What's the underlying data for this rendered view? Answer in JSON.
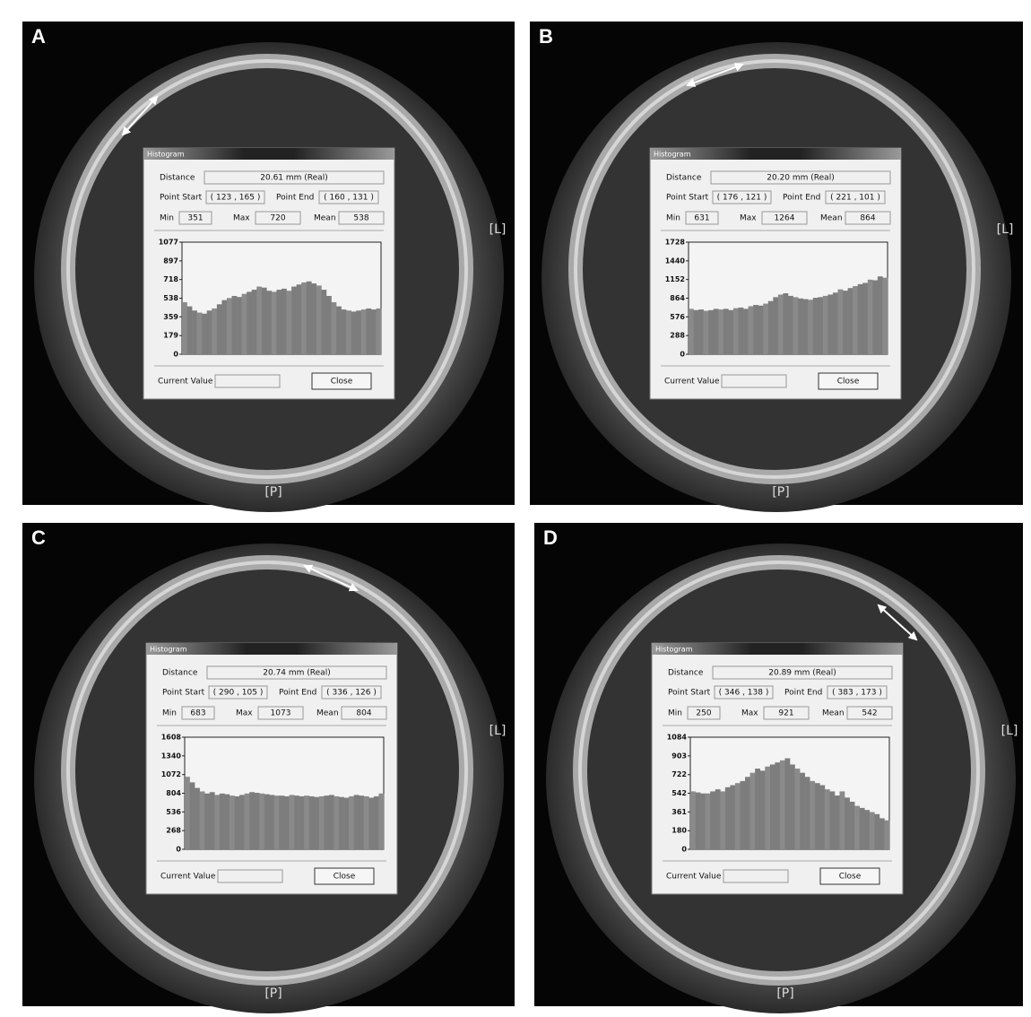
{
  "dialog_labels": {
    "title": "Histogram",
    "distance": "Distance",
    "point_start": "Point Start",
    "point_end": "Point End",
    "min": "Min",
    "max": "Max",
    "mean": "Mean",
    "current_value": "Current Value",
    "close": "Close"
  },
  "orientation": {
    "left": "[L]",
    "posterior": "[P]"
  },
  "panels": [
    {
      "letter": "A",
      "distance": "20.61 mm (Real)",
      "point_start": "( 123 , 165 )",
      "point_end": "( 160 , 131 )",
      "min": 351,
      "max": 720,
      "mean": 538,
      "histogram": {
        "type": "bar",
        "color": "#7d7d7d",
        "ylim": [
          0,
          1077
        ],
        "yticks": [
          0,
          179,
          359,
          538,
          718,
          897,
          1077
        ],
        "values": [
          500,
          460,
          420,
          400,
          390,
          420,
          440,
          480,
          520,
          540,
          560,
          550,
          580,
          600,
          620,
          650,
          640,
          610,
          600,
          620,
          630,
          610,
          650,
          670,
          690,
          700,
          680,
          660,
          620,
          560,
          500,
          460,
          430,
          420,
          410,
          420,
          430,
          440,
          430,
          440
        ]
      }
    },
    {
      "letter": "B",
      "distance": "20.20 mm (Real)",
      "point_start": "( 176 , 121 )",
      "point_end": "( 221 , 101 )",
      "min": 631,
      "max": 1264,
      "mean": 864,
      "histogram": {
        "type": "bar",
        "color": "#7d7d7d",
        "ylim": [
          0,
          1728
        ],
        "yticks": [
          0,
          288,
          576,
          864,
          1152,
          1440,
          1728
        ],
        "values": [
          700,
          680,
          690,
          670,
          680,
          700,
          690,
          700,
          680,
          710,
          720,
          700,
          740,
          760,
          750,
          780,
          820,
          880,
          920,
          940,
          900,
          880,
          860,
          850,
          840,
          870,
          880,
          900,
          920,
          950,
          1000,
          980,
          1020,
          1050,
          1080,
          1100,
          1150,
          1140,
          1200,
          1180
        ]
      }
    },
    {
      "letter": "C",
      "distance": "20.74 mm (Real)",
      "point_start": "( 290 , 105 )",
      "point_end": "( 336 , 126 )",
      "min": 683,
      "max": 1073,
      "mean": 804,
      "histogram": {
        "type": "bar",
        "color": "#7d7d7d",
        "ylim": [
          0,
          1608
        ],
        "yticks": [
          0,
          268,
          536,
          804,
          1072,
          1340,
          1608
        ],
        "values": [
          1040,
          960,
          880,
          830,
          800,
          820,
          780,
          800,
          790,
          770,
          760,
          780,
          800,
          820,
          810,
          800,
          790,
          780,
          770,
          770,
          760,
          780,
          770,
          760,
          770,
          760,
          750,
          760,
          770,
          780,
          760,
          750,
          740,
          760,
          780,
          770,
          760,
          740,
          760,
          800
        ]
      }
    },
    {
      "letter": "D",
      "distance": "20.89 mm (Real)",
      "point_start": "( 346 , 138 )",
      "point_end": "( 383 , 173 )",
      "min": 250,
      "max": 921,
      "mean": 542,
      "histogram": {
        "type": "bar",
        "color": "#7d7d7d",
        "ylim": [
          0,
          1084
        ],
        "yticks": [
          0,
          180,
          361,
          542,
          722,
          903,
          1084
        ],
        "values": [
          560,
          550,
          540,
          540,
          560,
          580,
          560,
          600,
          620,
          640,
          660,
          700,
          740,
          780,
          760,
          800,
          820,
          840,
          860,
          880,
          820,
          780,
          740,
          700,
          660,
          640,
          620,
          580,
          560,
          520,
          560,
          500,
          460,
          420,
          400,
          380,
          360,
          340,
          300,
          280
        ]
      }
    }
  ]
}
